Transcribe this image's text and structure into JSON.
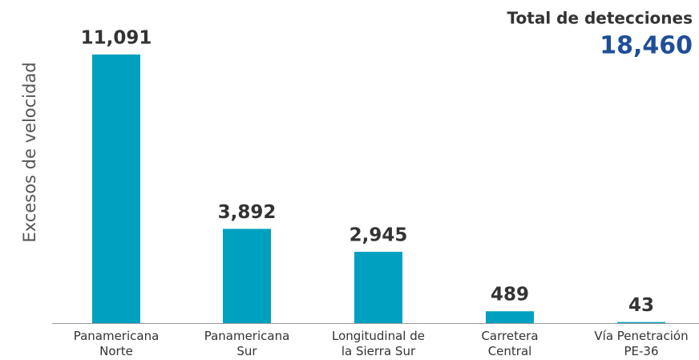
{
  "chart_data": {
    "type": "bar",
    "y_label": "Excesos de velocidad",
    "annotations": [
      {
        "text": "Total de detecciones"
      },
      {
        "text": "18,460"
      }
    ],
    "categories": [
      "Panamericana\nNorte",
      "Panamericana\nSur",
      "Longitudinal de\nla Sierra Sur",
      "Carretera\nCentral",
      "Vía Penetración\nPE-36"
    ],
    "values": [
      11091,
      3892,
      2945,
      489,
      43
    ],
    "value_labels": [
      "11,091",
      "3,892",
      "2,945",
      "489",
      "43"
    ],
    "color": "#00a0c1",
    "ylim": [
      0,
      12000
    ]
  }
}
